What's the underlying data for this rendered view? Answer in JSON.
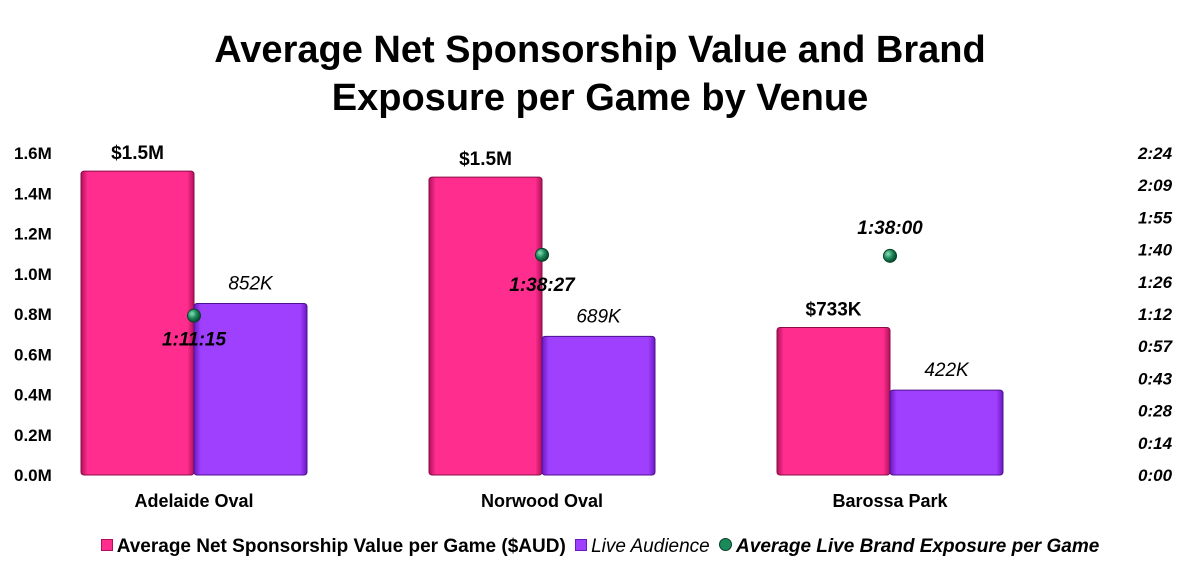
{
  "chart_data": {
    "type": "bar",
    "title_line1": "Average Net Sponsorship Value and Brand",
    "title_line2": "Exposure per Game by Venue",
    "categories": [
      "Adelaide Oval",
      "Norwood Oval",
      "Barossa Park"
    ],
    "series": [
      {
        "name": "Average Net Sponsorship Value per Game ($AUD)",
        "type": "bar",
        "axis": "left",
        "values": [
          1510000,
          1480000,
          733000
        ],
        "labels": [
          "$1.5M",
          "$1.5M",
          "$733K"
        ],
        "color": "#ff2e8e"
      },
      {
        "name": "Live Audience",
        "type": "bar",
        "axis": "left",
        "values": [
          852000,
          689000,
          422000
        ],
        "labels": [
          "852K",
          "689K",
          "422K"
        ],
        "color": "#a040ff"
      },
      {
        "name": "Average Live Brand Exposure per Game",
        "type": "scatter",
        "axis": "right",
        "values_minutes": [
          71.25,
          98.45,
          98.0
        ],
        "labels": [
          "1:11:15",
          "1:38:27",
          "1:38:00"
        ],
        "color": "#1a8a5a"
      }
    ],
    "y_left": {
      "range": [
        0,
        1600000
      ],
      "ticks": [
        "0.0M",
        "0.2M",
        "0.4M",
        "0.6M",
        "0.8M",
        "1.0M",
        "1.2M",
        "1.4M",
        "1.6M"
      ]
    },
    "y_right": {
      "range_minutes": [
        0,
        144
      ],
      "ticks": [
        "0:00",
        "0:14",
        "0:28",
        "0:43",
        "0:57",
        "1:12",
        "1:26",
        "1:40",
        "1:55",
        "2:09",
        "2:24"
      ]
    },
    "grid": false,
    "legend_position": "bottom"
  }
}
